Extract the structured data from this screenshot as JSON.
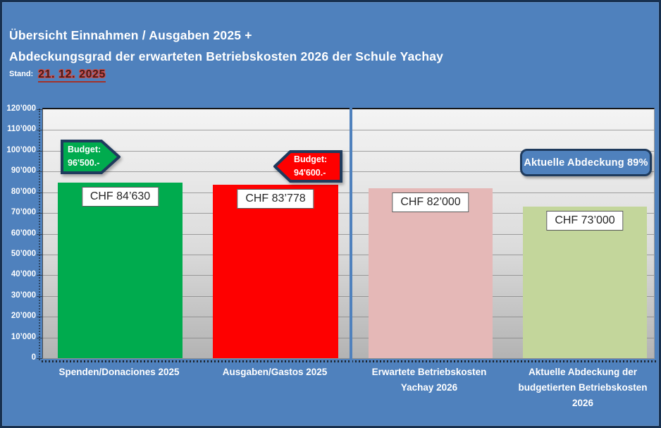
{
  "header": {
    "title_line1": "Übersicht Einnahmen / Ausgaben 2025 +",
    "title_line2": "Abdeckungsgrad der erwarteten Betriebskosten 2026 der Schule Yachay",
    "stand_label": "Stand:",
    "stand_date": "21. 12. 2025"
  },
  "chart_data": {
    "type": "bar",
    "title": "Übersicht Einnahmen / Ausgaben 2025 + Abdeckungsgrad der erwarteten Betriebskosten 2026 der Schule Yachay",
    "categories": [
      "Spenden/Donaciones 2025",
      "Ausgaben/Gastos 2025",
      "Erwartete Betriebskosten Yachay 2026",
      "Aktuelle Abdeckung der budgetierten Betriebskosten 2026"
    ],
    "category_lines": [
      [
        "Spenden/Donaciones 2025"
      ],
      [
        "Ausgaben/Gastos 2025"
      ],
      [
        "Erwartete Betriebskosten",
        "Yachay 2026"
      ],
      [
        "Aktuelle Abdeckung der",
        "budgetierten Betriebskosten",
        "2026"
      ]
    ],
    "values": [
      84630,
      83778,
      82000,
      73000
    ],
    "bar_labels": [
      "CHF 84’630",
      "CHF 83’778",
      "CHF 82’000",
      "CHF 73’000"
    ],
    "bar_colors": [
      "#00ab4e",
      "#fe0000",
      "#e5b8b7",
      "#c3d69b"
    ],
    "xlabel": "",
    "ylabel": "",
    "ylim": [
      0,
      120000
    ],
    "ytick_step": 10000,
    "ytick_labels": [
      "0",
      "10’000",
      "20’000",
      "30’000",
      "40’000",
      "50’000",
      "60’000",
      "70’000",
      "80’000",
      "90’000",
      "100’000",
      "110’000",
      "120’000"
    ],
    "grid": true,
    "legend": false,
    "annotations": {
      "budget_spenden": {
        "label": "Budget:",
        "value": "96'500.-",
        "shape": "arrow-right",
        "color": "#00ab4e"
      },
      "budget_ausgaben": {
        "label": "Budget:",
        "value": "94'600.-",
        "shape": "arrow-left",
        "color": "#fe0000"
      },
      "abdeckung": {
        "text": "Aktuelle Abdeckung 89%",
        "shape": "rounded-box",
        "color": "#4f81bd"
      }
    }
  },
  "colors": {
    "background": "#4f81bd",
    "frame_border": "#17304f",
    "plot_top": "#f4f4f4",
    "plot_bottom": "#b3b3b3",
    "gridline": "#7f7f7f",
    "divider": "#4f81bd",
    "annotation_border": "#1f3b5d",
    "label_box_border": "#595959",
    "date_red": "#c00000"
  }
}
